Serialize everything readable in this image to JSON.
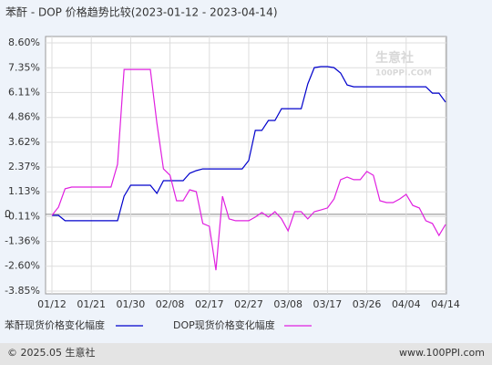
{
  "chart_data": {
    "type": "line",
    "title": "苯酐 - DOP 价格趋势比较(2023-01-12 - 2023-04-14)",
    "categories": [
      "01/12",
      null,
      null,
      null,
      null,
      null,
      "01/21",
      null,
      null,
      null,
      null,
      null,
      "01/30",
      null,
      null,
      null,
      null,
      null,
      "02/08",
      null,
      null,
      null,
      null,
      null,
      "02/17",
      null,
      null,
      null,
      null,
      null,
      "02/27",
      null,
      null,
      null,
      null,
      null,
      "03/08",
      null,
      null,
      null,
      null,
      null,
      "03/17",
      null,
      null,
      null,
      null,
      null,
      "03/26",
      null,
      null,
      null,
      null,
      null,
      "04/04",
      null,
      null,
      null,
      null,
      null,
      "04/14"
    ],
    "series": [
      {
        "name": "苯酐现货价格变化幅度",
        "color": "#0000cc",
        "values": [
          -0.05,
          -0.05,
          -0.32,
          -0.32,
          -0.32,
          -0.32,
          -0.32,
          -0.32,
          -0.32,
          -0.32,
          -0.32,
          0.91,
          1.46,
          1.46,
          1.46,
          1.46,
          1.05,
          1.69,
          1.69,
          1.69,
          1.69,
          2.06,
          2.19,
          2.28,
          2.28,
          2.28,
          2.28,
          2.28,
          2.28,
          2.28,
          2.7,
          4.21,
          4.21,
          4.71,
          4.71,
          5.3,
          5.3,
          5.3,
          5.3,
          6.54,
          7.36,
          7.41,
          7.41,
          7.36,
          7.09,
          6.49,
          6.4,
          6.4,
          6.4,
          6.4,
          6.4,
          6.4,
          6.4,
          6.4,
          6.4,
          6.4,
          6.4,
          6.4,
          6.08,
          6.08,
          5.63
        ]
      },
      {
        "name": "DOP现货价格变化幅度",
        "color": "#e020e0",
        "values": [
          -0.05,
          0.36,
          1.28,
          1.37,
          1.37,
          1.37,
          1.37,
          1.37,
          1.37,
          1.37,
          2.51,
          7.27,
          7.27,
          7.27,
          7.27,
          7.27,
          4.57,
          2.28,
          1.96,
          0.68,
          0.68,
          1.23,
          1.14,
          -0.46,
          -0.6,
          -2.8,
          0.91,
          -0.23,
          -0.32,
          -0.32,
          -0.32,
          -0.14,
          0.09,
          -0.14,
          0.13,
          -0.23,
          -0.83,
          0.13,
          0.13,
          -0.23,
          0.13,
          0.22,
          0.32,
          0.77,
          1.74,
          1.87,
          1.74,
          1.74,
          2.15,
          1.96,
          0.68,
          0.59,
          0.59,
          0.77,
          1.0,
          0.45,
          0.32,
          -0.32,
          -0.46,
          -1.06,
          -0.51
        ]
      }
    ],
    "ylim": [
      -3.85,
      8.6
    ],
    "yticks": [
      {
        "value": 8.6,
        "label": "8.60%"
      },
      {
        "value": 7.35,
        "label": "7.35%"
      },
      {
        "value": 6.11,
        "label": "6.11%"
      },
      {
        "value": 4.86,
        "label": "4.86%"
      },
      {
        "value": 3.62,
        "label": "3.62%"
      },
      {
        "value": 2.37,
        "label": "2.37%"
      },
      {
        "value": 1.13,
        "label": "1.13%"
      },
      {
        "value": -0.11,
        "label": "-0.11%"
      },
      {
        "value": -1.36,
        "label": "-1.36%"
      },
      {
        "value": -2.6,
        "label": "-2.60%"
      },
      {
        "value": -3.85,
        "label": "-3.85%"
      }
    ],
    "zero_line": {
      "value": 0,
      "label": "0"
    },
    "grid": true,
    "watermark": [
      "生意社",
      "100PPI.COM"
    ],
    "footer": {
      "left": "© 2025.05 生意社",
      "right": "www.100PPI.com"
    }
  }
}
